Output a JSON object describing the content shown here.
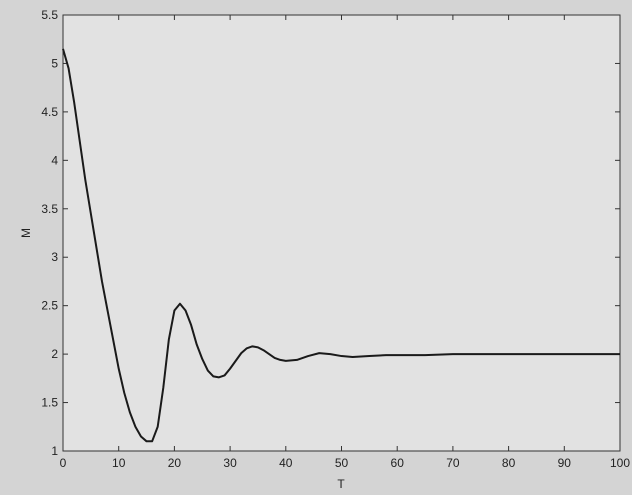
{
  "chart_data": {
    "type": "line",
    "xlabel": "T",
    "ylabel": "M",
    "color": "#1a1a1a",
    "x": [
      0,
      1,
      2,
      3,
      4,
      5,
      6,
      7,
      8,
      9,
      10,
      11,
      12,
      13,
      14,
      15,
      16,
      17,
      18,
      19,
      20,
      21,
      22,
      23,
      24,
      25,
      26,
      27,
      28,
      29,
      30,
      31,
      32,
      33,
      34,
      35,
      36,
      37,
      38,
      39,
      40,
      42,
      44,
      46,
      48,
      50,
      52,
      55,
      58,
      60,
      65,
      70,
      80,
      90,
      100
    ],
    "values": [
      5.15,
      4.95,
      4.6,
      4.2,
      3.8,
      3.45,
      3.1,
      2.75,
      2.45,
      2.15,
      1.85,
      1.6,
      1.4,
      1.25,
      1.15,
      1.1,
      1.1,
      1.25,
      1.65,
      2.15,
      2.45,
      2.52,
      2.45,
      2.3,
      2.1,
      1.95,
      1.83,
      1.77,
      1.76,
      1.78,
      1.85,
      1.93,
      2.01,
      2.06,
      2.08,
      2.07,
      2.04,
      2.0,
      1.96,
      1.94,
      1.93,
      1.94,
      1.98,
      2.01,
      2.0,
      1.98,
      1.97,
      1.98,
      1.99,
      1.99,
      1.99,
      2.0,
      2.0,
      2.0,
      2.0
    ],
    "xlim": [
      0,
      100
    ],
    "xticks": [
      0,
      10,
      20,
      30,
      40,
      50,
      60,
      70,
      80,
      90,
      100
    ],
    "ylim": [
      1,
      5.5
    ],
    "yticks": [
      1,
      1.5,
      2,
      2.5,
      3,
      3.5,
      4,
      4.5,
      5,
      5.5
    ]
  }
}
